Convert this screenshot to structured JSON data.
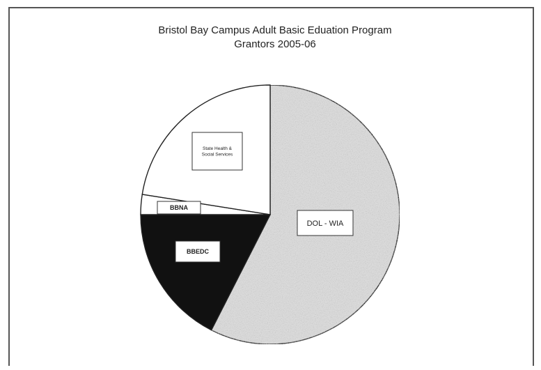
{
  "chart_data": {
    "type": "pie",
    "title": "Bristol Bay Campus Adult Basic Eduation Program",
    "subtitle": "Grantors 2005-06",
    "slices": [
      {
        "label": "DOL - WIA",
        "value": 57.5,
        "color": "#dcdcdc"
      },
      {
        "label": "BBEDC",
        "value": 17.5,
        "color": "#111111"
      },
      {
        "label": "BBNA",
        "value": 2.5,
        "color": "#ffffff"
      },
      {
        "label": "State Health & Social Services",
        "value": 22.5,
        "color": "#ffffff"
      }
    ],
    "start_angle_deg": 0,
    "direction": "clockwise",
    "legend": "none"
  }
}
